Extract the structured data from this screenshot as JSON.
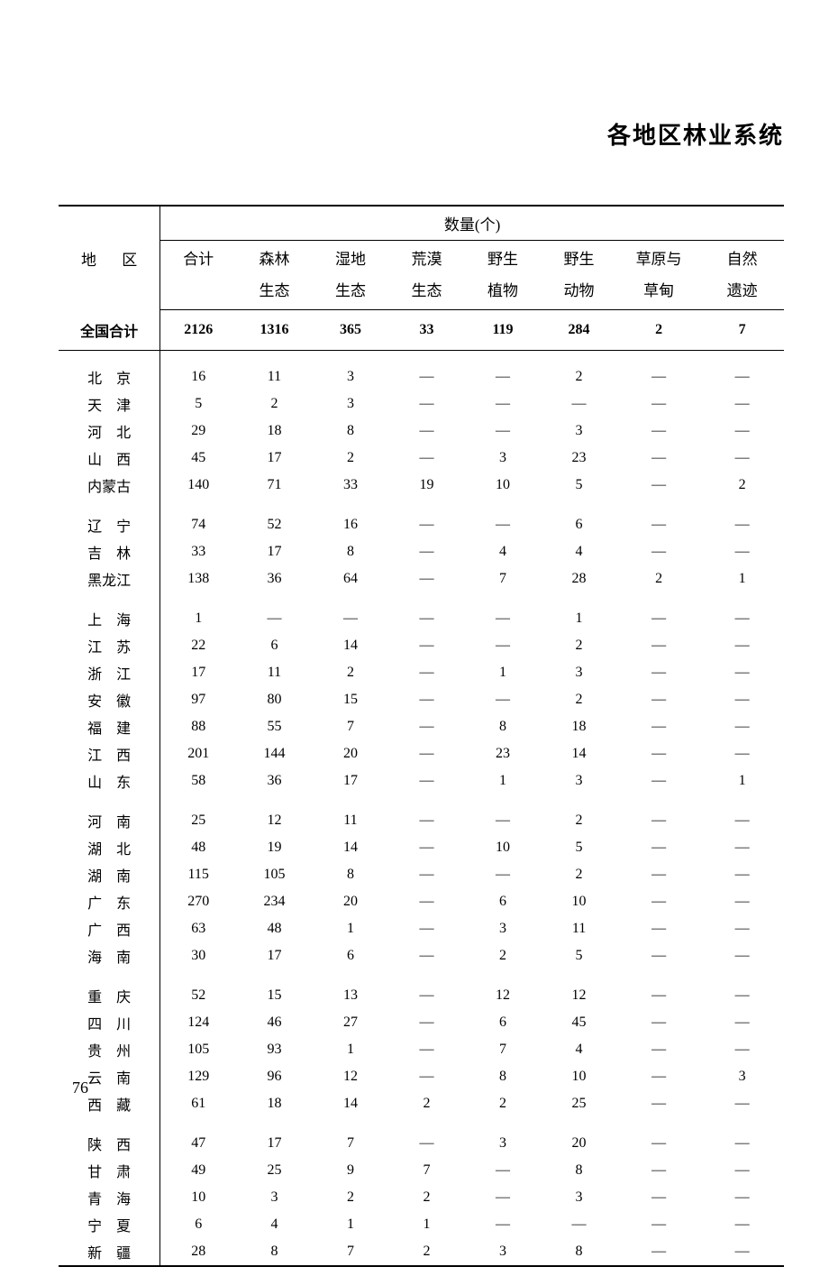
{
  "title": "各地区林业系统",
  "page_number": "76",
  "header": {
    "region": "地  区",
    "quantity_group": "数量(个)",
    "columns": [
      "合计",
      "森林生态",
      "湿地生态",
      "荒漠生态",
      "野生植物",
      "野生动物",
      "草原与草甸",
      "自然遗迹"
    ],
    "columns_line1": [
      "合计",
      "森林",
      "湿地",
      "荒漠",
      "野生",
      "野生",
      "草原与",
      "自然"
    ],
    "columns_line2": [
      "",
      "生态",
      "生态",
      "生态",
      "植物",
      "动物",
      "草甸",
      "遗迹"
    ]
  },
  "total_label": "全国合计",
  "total_row": [
    "2126",
    "1316",
    "365",
    "33",
    "119",
    "284",
    "2",
    "7"
  ],
  "groups": [
    [
      {
        "region": "北　京",
        "values": [
          "16",
          "11",
          "3",
          "—",
          "—",
          "2",
          "—",
          "—"
        ]
      },
      {
        "region": "天　津",
        "values": [
          "5",
          "2",
          "3",
          "—",
          "—",
          "—",
          "—",
          "—"
        ]
      },
      {
        "region": "河　北",
        "values": [
          "29",
          "18",
          "8",
          "—",
          "—",
          "3",
          "—",
          "—"
        ]
      },
      {
        "region": "山　西",
        "values": [
          "45",
          "17",
          "2",
          "—",
          "3",
          "23",
          "—",
          "—"
        ]
      },
      {
        "region": "内蒙古",
        "values": [
          "140",
          "71",
          "33",
          "19",
          "10",
          "5",
          "—",
          "2"
        ]
      }
    ],
    [
      {
        "region": "辽　宁",
        "values": [
          "74",
          "52",
          "16",
          "—",
          "—",
          "6",
          "—",
          "—"
        ]
      },
      {
        "region": "吉　林",
        "values": [
          "33",
          "17",
          "8",
          "—",
          "4",
          "4",
          "—",
          "—"
        ]
      },
      {
        "region": "黑龙江",
        "values": [
          "138",
          "36",
          "64",
          "—",
          "7",
          "28",
          "2",
          "1"
        ]
      }
    ],
    [
      {
        "region": "上　海",
        "values": [
          "1",
          "—",
          "—",
          "—",
          "—",
          "1",
          "—",
          "—"
        ]
      },
      {
        "region": "江　苏",
        "values": [
          "22",
          "6",
          "14",
          "—",
          "—",
          "2",
          "—",
          "—"
        ]
      },
      {
        "region": "浙　江",
        "values": [
          "17",
          "11",
          "2",
          "—",
          "1",
          "3",
          "—",
          "—"
        ]
      },
      {
        "region": "安　徽",
        "values": [
          "97",
          "80",
          "15",
          "—",
          "—",
          "2",
          "—",
          "—"
        ]
      },
      {
        "region": "福　建",
        "values": [
          "88",
          "55",
          "7",
          "—",
          "8",
          "18",
          "—",
          "—"
        ]
      },
      {
        "region": "江　西",
        "values": [
          "201",
          "144",
          "20",
          "—",
          "23",
          "14",
          "—",
          "—"
        ]
      },
      {
        "region": "山　东",
        "values": [
          "58",
          "36",
          "17",
          "—",
          "1",
          "3",
          "—",
          "1"
        ]
      }
    ],
    [
      {
        "region": "河　南",
        "values": [
          "25",
          "12",
          "11",
          "—",
          "—",
          "2",
          "—",
          "—"
        ]
      },
      {
        "region": "湖　北",
        "values": [
          "48",
          "19",
          "14",
          "—",
          "10",
          "5",
          "—",
          "—"
        ]
      },
      {
        "region": "湖　南",
        "values": [
          "115",
          "105",
          "8",
          "—",
          "—",
          "2",
          "—",
          "—"
        ]
      },
      {
        "region": "广　东",
        "values": [
          "270",
          "234",
          "20",
          "—",
          "6",
          "10",
          "—",
          "—"
        ]
      },
      {
        "region": "广　西",
        "values": [
          "63",
          "48",
          "1",
          "—",
          "3",
          "11",
          "—",
          "—"
        ]
      },
      {
        "region": "海　南",
        "values": [
          "30",
          "17",
          "6",
          "—",
          "2",
          "5",
          "—",
          "—"
        ]
      }
    ],
    [
      {
        "region": "重　庆",
        "values": [
          "52",
          "15",
          "13",
          "—",
          "12",
          "12",
          "—",
          "—"
        ]
      },
      {
        "region": "四　川",
        "values": [
          "124",
          "46",
          "27",
          "—",
          "6",
          "45",
          "—",
          "—"
        ]
      },
      {
        "region": "贵　州",
        "values": [
          "105",
          "93",
          "1",
          "—",
          "7",
          "4",
          "—",
          "—"
        ]
      },
      {
        "region": "云　南",
        "values": [
          "129",
          "96",
          "12",
          "—",
          "8",
          "10",
          "—",
          "3"
        ]
      },
      {
        "region": "西　藏",
        "values": [
          "61",
          "18",
          "14",
          "2",
          "2",
          "25",
          "—",
          "—"
        ]
      }
    ],
    [
      {
        "region": "陕　西",
        "values": [
          "47",
          "17",
          "7",
          "—",
          "3",
          "20",
          "—",
          "—"
        ]
      },
      {
        "region": "甘　肃",
        "values": [
          "49",
          "25",
          "9",
          "7",
          "—",
          "8",
          "—",
          "—"
        ]
      },
      {
        "region": "青　海",
        "values": [
          "10",
          "3",
          "2",
          "2",
          "—",
          "3",
          "—",
          "—"
        ]
      },
      {
        "region": "宁　夏",
        "values": [
          "6",
          "4",
          "1",
          "1",
          "—",
          "—",
          "—",
          "—"
        ]
      },
      {
        "region": "新　疆",
        "values": [
          "28",
          "8",
          "7",
          "2",
          "3",
          "8",
          "—",
          "—"
        ]
      }
    ]
  ],
  "styling": {
    "background_color": "#ffffff",
    "text_color": "#000000",
    "title_fontsize": 26,
    "header_fontsize": 17,
    "body_fontsize": 16,
    "col_widths_pct": [
      14,
      10.5,
      10.5,
      10.5,
      10.5,
      10.5,
      10.5,
      11.5,
      11.5
    ]
  }
}
